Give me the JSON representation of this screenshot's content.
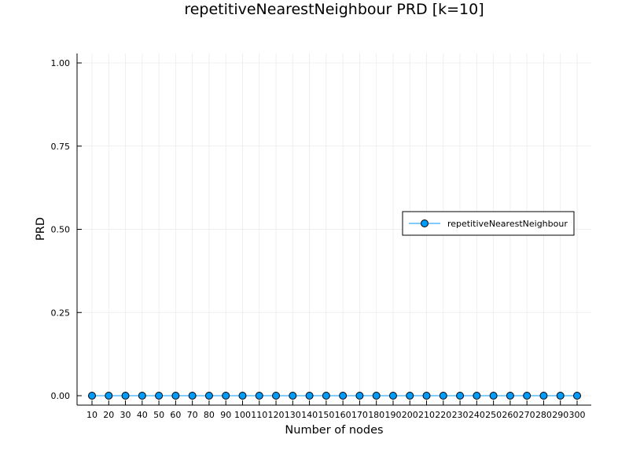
{
  "chart_data": {
    "type": "line",
    "title": "repetitiveNearestNeighbour PRD [k=10]",
    "xlabel": "Number of nodes",
    "ylabel": "PRD",
    "x": [
      10,
      20,
      30,
      40,
      50,
      60,
      70,
      80,
      90,
      100,
      110,
      120,
      130,
      140,
      150,
      160,
      170,
      180,
      190,
      200,
      210,
      220,
      230,
      240,
      250,
      260,
      270,
      280,
      290,
      300
    ],
    "xticks": [
      "10",
      "20",
      "30",
      "40",
      "50",
      "60",
      "70",
      "80",
      "90",
      "100",
      "110",
      "120",
      "130",
      "140",
      "150",
      "160",
      "170",
      "180",
      "190",
      "200",
      "210",
      "220",
      "230",
      "240",
      "250",
      "260",
      "270",
      "280",
      "290",
      "300"
    ],
    "yticks": [
      "0.00",
      "0.25",
      "0.50",
      "0.75",
      "1.00"
    ],
    "ylim": [
      0,
      1
    ],
    "grid": true,
    "legend": "right",
    "series": [
      {
        "name": "repetitiveNearestNeighbour",
        "color": "#009af9",
        "marker": "circle",
        "values": [
          0,
          0,
          0,
          0,
          0,
          0,
          0,
          0,
          0,
          0,
          0,
          0,
          0,
          0,
          0,
          0,
          0,
          0,
          0,
          0,
          0,
          0,
          0,
          0,
          0,
          0,
          0,
          0,
          0,
          0
        ]
      }
    ]
  }
}
